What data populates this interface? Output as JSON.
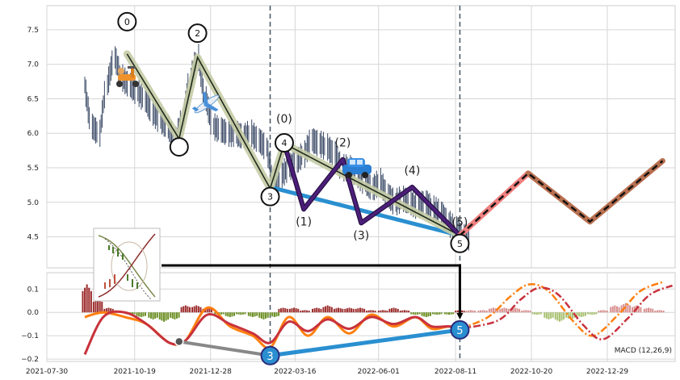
{
  "chart_data": [
    {
      "type": "line",
      "panel": "price",
      "ylim": [
        4.05,
        7.85
      ],
      "yticks": [
        4.5,
        5.0,
        5.5,
        6.0,
        6.5,
        7.0,
        7.5
      ],
      "ytick_labels": [
        "4.5",
        "5.0",
        "5.5",
        "6.0",
        "6.5",
        "7.0",
        "7.5"
      ],
      "grid": true,
      "price_series": {
        "x": [
          "2021-09-03",
          "2021-09-10",
          "2021-09-17",
          "2021-09-24",
          "2021-10-01",
          "2021-10-08",
          "2021-10-15",
          "2021-10-22",
          "2021-10-29",
          "2021-11-05",
          "2021-11-12",
          "2021-11-19",
          "2021-11-26",
          "2021-12-03",
          "2021-12-10",
          "2021-12-17",
          "2021-12-24",
          "2021-12-31",
          "2022-01-07",
          "2022-01-14",
          "2022-01-21",
          "2022-01-28",
          "2022-02-04",
          "2022-02-11",
          "2022-02-18",
          "2022-02-25",
          "2022-03-04",
          "2022-03-11",
          "2022-03-18",
          "2022-03-25",
          "2022-04-01",
          "2022-04-08",
          "2022-04-15",
          "2022-04-22",
          "2022-04-29",
          "2022-05-06",
          "2022-05-13",
          "2022-05-20",
          "2022-05-27",
          "2022-06-03",
          "2022-06-10",
          "2022-06-17",
          "2022-06-24",
          "2022-07-01",
          "2022-07-08",
          "2022-07-15",
          "2022-07-22",
          "2022-07-29",
          "2022-08-05",
          "2022-08-12",
          "2022-08-19"
        ],
        "values": [
          6.7,
          6.1,
          6.0,
          6.7,
          7.1,
          6.8,
          6.7,
          6.6,
          6.5,
          6.3,
          6.2,
          6.1,
          5.9,
          6.2,
          6.8,
          7.1,
          6.5,
          6.1,
          6.05,
          6.0,
          6.0,
          5.95,
          6.0,
          5.9,
          5.8,
          5.3,
          5.4,
          5.5,
          5.6,
          5.7,
          5.9,
          5.85,
          5.8,
          5.7,
          5.5,
          5.5,
          5.4,
          5.3,
          5.2,
          5.3,
          5.1,
          5.0,
          5.05,
          5.0,
          4.95,
          5.0,
          4.9,
          4.85,
          4.7,
          4.6,
          4.5
        ]
      },
      "wave_primary": {
        "x": [
          "2021-10-12",
          "2021-11-29",
          "2021-12-16",
          "2022-02-21",
          "2022-03-06",
          "2022-08-15"
        ],
        "values": [
          7.15,
          5.92,
          7.1,
          5.2,
          5.85,
          4.52
        ],
        "labels": [
          "0",
          "",
          "2",
          "3",
          "4",
          "5"
        ]
      },
      "wave_secondary": {
        "x": [
          "2022-03-06",
          "2022-03-24",
          "2022-04-29",
          "2022-05-16",
          "2022-07-02",
          "2022-08-15"
        ],
        "values": [
          5.85,
          4.9,
          5.62,
          4.7,
          5.22,
          4.52
        ],
        "labels": [
          "(0)",
          "(1)",
          "(2)",
          "(3)",
          "(4)",
          "(5)"
        ]
      },
      "trendline": {
        "x": [
          "2022-02-21",
          "2022-08-15"
        ],
        "values": [
          5.22,
          4.52
        ]
      },
      "projection": {
        "x": [
          "2022-08-15",
          "2022-10-17",
          "2022-12-13",
          "2023-02-18"
        ],
        "values": [
          4.52,
          5.42,
          4.72,
          5.6
        ]
      },
      "vlines": [
        "2022-02-21",
        "2022-08-15"
      ]
    },
    {
      "type": "bar",
      "panel": "macd",
      "label": "MACD (12,26,9)",
      "ylim": [
        -0.21,
        0.17
      ],
      "yticks": [
        -0.2,
        -0.1,
        0.0,
        0.1
      ],
      "ytick_labels": [
        "−0.2",
        "−0.1",
        "0.0",
        "0.1"
      ],
      "xticks": [
        "2021-07-30",
        "2021-10-19",
        "2021-12-28",
        "2022-03-16",
        "2022-06-01",
        "2022-08-11",
        "2022-10-20",
        "2022-12-29"
      ],
      "xtick_labels": [
        "2021-07-30",
        "2021-10-19",
        "2021-12-28",
        "2022-03-16",
        "2022-06-01",
        "2022-08-11",
        "2022-10-20",
        "2022-12-29"
      ],
      "macd_line": {
        "x": [
          "2021-09-03",
          "2021-09-20",
          "2021-10-10",
          "2021-10-30",
          "2021-11-20",
          "2021-12-05",
          "2021-12-25",
          "2022-01-15",
          "2022-02-05",
          "2022-02-21",
          "2022-03-10",
          "2022-03-28",
          "2022-04-15",
          "2022-05-05",
          "2022-05-25",
          "2022-06-15",
          "2022-07-05",
          "2022-07-20",
          "2022-08-05",
          "2022-08-15"
        ],
        "values": [
          -0.02,
          0.0,
          -0.02,
          -0.05,
          -0.13,
          -0.12,
          0.02,
          -0.06,
          -0.1,
          -0.15,
          -0.02,
          -0.1,
          -0.02,
          -0.09,
          -0.01,
          -0.06,
          -0.02,
          -0.07,
          -0.06,
          -0.07
        ]
      },
      "signal_line": {
        "x": [
          "2021-09-03",
          "2021-09-20",
          "2021-10-10",
          "2021-10-30",
          "2021-11-20",
          "2021-12-05",
          "2021-12-25",
          "2022-01-15",
          "2022-02-05",
          "2022-02-21",
          "2022-03-10",
          "2022-03-28",
          "2022-04-15",
          "2022-05-05",
          "2022-05-25",
          "2022-06-15",
          "2022-07-05",
          "2022-07-20",
          "2022-08-05",
          "2022-08-15"
        ],
        "values": [
          -0.18,
          -0.02,
          0.0,
          -0.05,
          -0.13,
          -0.12,
          -0.01,
          -0.05,
          -0.09,
          -0.13,
          -0.04,
          -0.08,
          -0.03,
          -0.07,
          -0.02,
          -0.05,
          -0.02,
          -0.06,
          -0.06,
          -0.07
        ]
      },
      "projection_macd": {
        "x": [
          "2022-08-15",
          "2022-09-10",
          "2022-10-01",
          "2022-10-18",
          "2022-11-05",
          "2022-11-28",
          "2022-12-16",
          "2023-01-08",
          "2023-01-28",
          "2023-02-18"
        ],
        "values": [
          -0.07,
          -0.02,
          0.07,
          0.12,
          0.09,
          -0.04,
          -0.1,
          -0.01,
          0.09,
          0.13
        ]
      },
      "divergence": {
        "x": [
          "2021-11-29",
          "2022-02-21",
          "2022-08-15"
        ],
        "values": [
          -0.125,
          -0.185,
          -0.075
        ],
        "labels": [
          "",
          "3",
          "5"
        ]
      },
      "histogram": {
        "x": [
          "2021-09-05",
          "2021-09-15",
          "2021-09-25",
          "2021-10-05",
          "2021-10-15",
          "2021-10-25",
          "2021-11-05",
          "2021-11-15",
          "2021-11-25",
          "2021-12-05",
          "2021-12-15",
          "2021-12-25",
          "2022-01-05",
          "2022-01-15",
          "2022-01-25",
          "2022-02-05",
          "2022-02-15",
          "2022-02-25",
          "2022-03-05",
          "2022-03-15",
          "2022-03-25",
          "2022-04-05",
          "2022-04-15",
          "2022-04-25",
          "2022-05-05",
          "2022-05-15",
          "2022-05-25",
          "2022-06-05",
          "2022-06-15",
          "2022-06-25",
          "2022-07-05",
          "2022-07-15",
          "2022-07-25",
          "2022-08-05",
          "2022-08-15",
          "2022-08-25",
          "2022-09-05",
          "2022-09-15",
          "2022-09-25",
          "2022-10-05",
          "2022-10-15",
          "2022-10-25",
          "2022-11-05",
          "2022-11-15",
          "2022-11-25",
          "2022-12-05",
          "2022-12-15",
          "2022-12-25",
          "2023-01-05",
          "2023-01-15",
          "2023-01-25",
          "2023-02-05",
          "2023-02-15"
        ],
        "values": [
          0.12,
          0.06,
          0.02,
          0.0,
          -0.01,
          -0.02,
          -0.03,
          -0.04,
          -0.03,
          0.03,
          0.03,
          0.02,
          -0.01,
          -0.02,
          -0.01,
          -0.02,
          -0.03,
          -0.02,
          0.02,
          0.02,
          0.01,
          0.02,
          0.03,
          0.02,
          0.02,
          0.02,
          0.01,
          0.01,
          0.02,
          0.01,
          -0.01,
          -0.02,
          -0.01,
          -0.01,
          0.01,
          0.01,
          0.01,
          0.02,
          0.02,
          0.02,
          0.01,
          -0.01,
          -0.03,
          -0.04,
          -0.03,
          -0.02,
          -0.01,
          0.01,
          0.03,
          0.04,
          0.03,
          0.02,
          0.01
        ]
      }
    }
  ],
  "colors": {
    "price": "#3b4a66",
    "wave_primary_fill": "#c5cca6",
    "wave_primary_line": "#1f2a1a",
    "wave_secondary": "#4b1f7a",
    "trendline": "#2a8fd0",
    "projection_pink": "#f08080",
    "projection_brown": "#b87050",
    "projection_dash": "#111111",
    "vline": "#445566",
    "macd": "#ff7f0e",
    "signal": "#c8323c",
    "hist_pos": "#9c2b2b",
    "hist_neg": "#6b8e23",
    "hist_proj_pos": "#d89090",
    "hist_proj_neg": "#a8c070",
    "grid": "#d6d6d6"
  },
  "icons": [
    "scooter-icon",
    "airplane-icon",
    "car-icon"
  ]
}
